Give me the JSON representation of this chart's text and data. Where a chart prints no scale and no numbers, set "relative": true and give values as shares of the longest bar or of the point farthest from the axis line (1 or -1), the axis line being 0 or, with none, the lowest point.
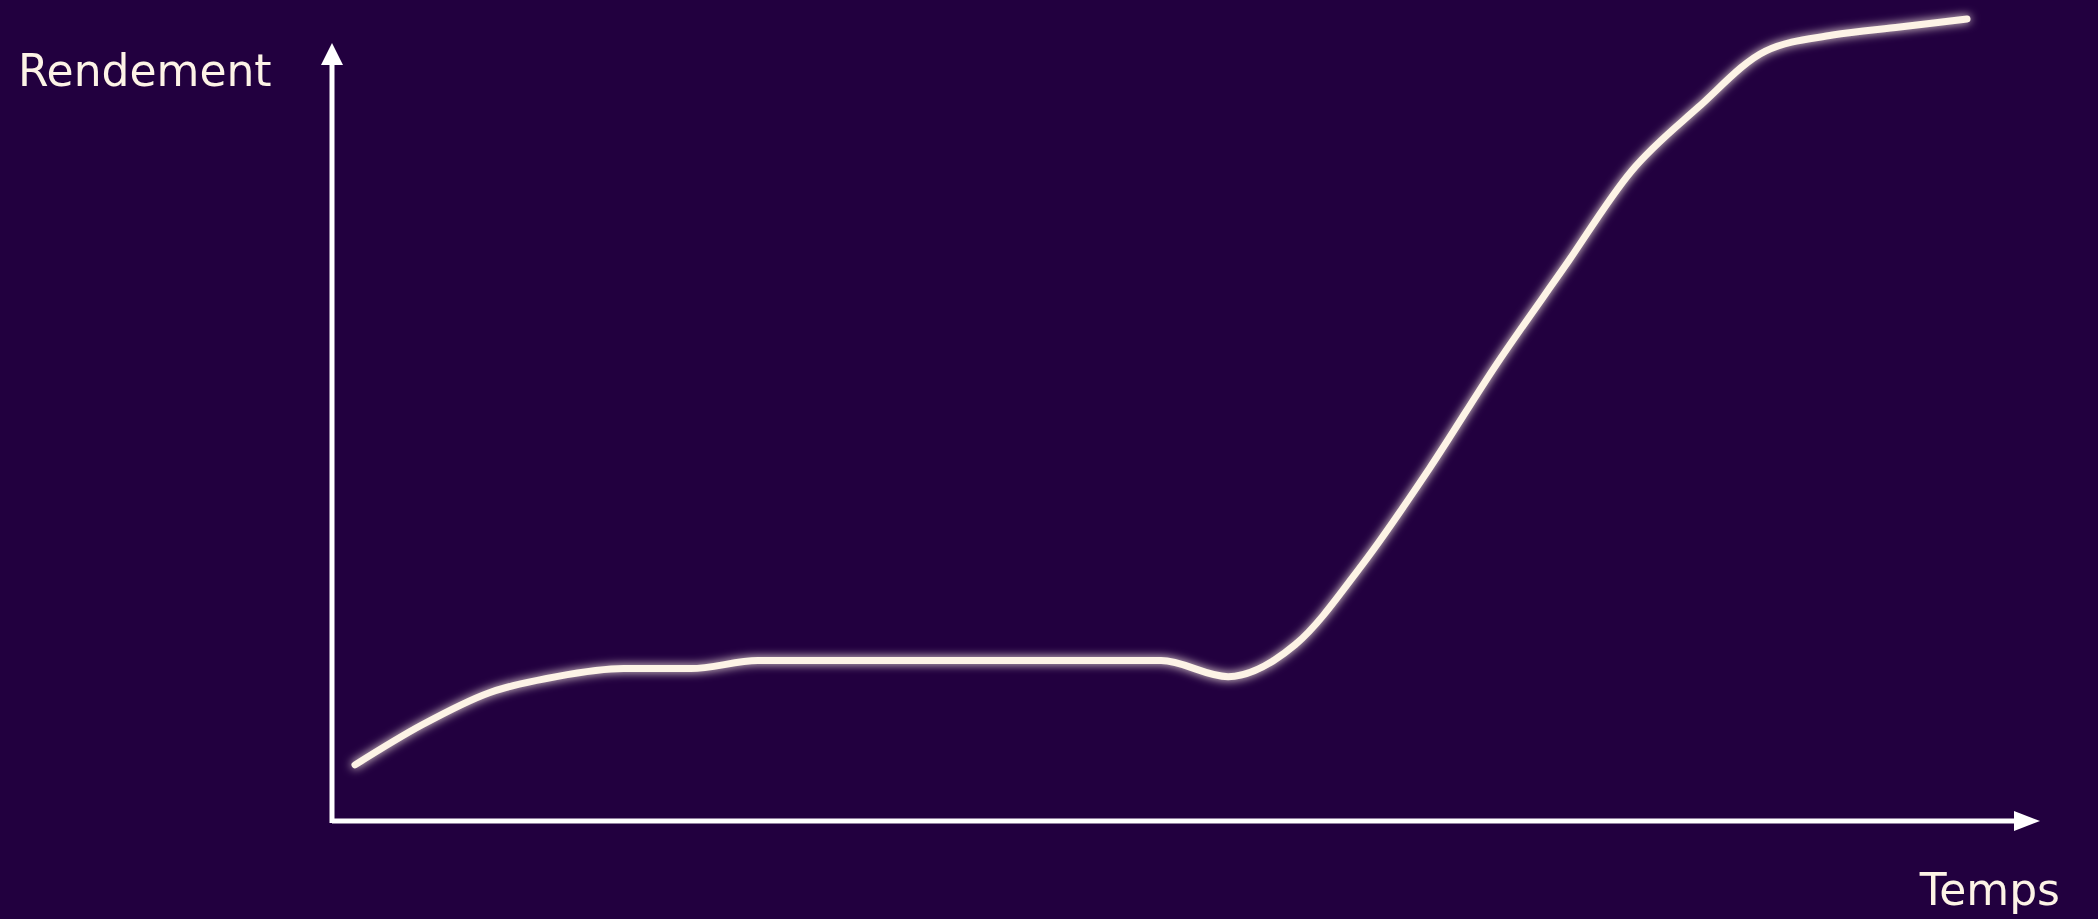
{
  "chart_data": {
    "type": "line",
    "relative": true,
    "xlabel": "Temps",
    "ylabel": "Rendement",
    "categories": [
      null,
      null,
      null,
      null,
      null,
      null,
      null,
      null,
      null,
      null,
      null,
      null,
      null,
      null,
      null,
      null,
      null,
      null,
      null,
      null,
      null,
      null,
      null,
      null,
      null
    ],
    "series": [
      {
        "color": "#fdf3e6",
        "values": [
          0.07,
          0.12,
          0.16,
          0.18,
          0.19,
          0.19,
          0.2,
          0.2,
          0.2,
          0.2,
          0.2,
          0.2,
          0.2,
          0.18,
          0.22,
          0.32,
          0.44,
          0.57,
          0.69,
          0.81,
          0.89,
          0.96,
          0.98,
          0.99,
          1
        ]
      }
    ]
  }
}
